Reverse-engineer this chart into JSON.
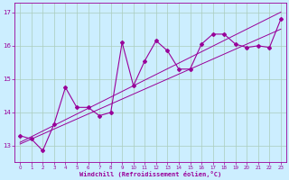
{
  "xlabel": "Windchill (Refroidissement éolien,°C)",
  "bg_color": "#cceeff",
  "line_color": "#990099",
  "grid_color": "#aaccbb",
  "x_data": [
    0,
    1,
    2,
    3,
    4,
    5,
    6,
    7,
    8,
    9,
    10,
    11,
    12,
    13,
    14,
    15,
    16,
    17,
    18,
    19,
    20,
    21,
    22,
    23
  ],
  "y_main": [
    13.3,
    13.2,
    12.85,
    13.65,
    14.75,
    14.15,
    14.15,
    13.9,
    14.0,
    16.1,
    14.8,
    15.55,
    16.15,
    15.85,
    15.3,
    15.3,
    16.05,
    16.35,
    16.35,
    16.05,
    15.95,
    16.0,
    15.95,
    16.8
  ],
  "y_reg1": [
    13.1,
    13.27,
    13.44,
    13.61,
    13.78,
    13.95,
    14.12,
    14.29,
    14.46,
    14.63,
    14.8,
    14.97,
    15.14,
    15.31,
    15.48,
    15.65,
    15.82,
    15.99,
    16.16,
    16.33,
    16.5,
    16.67,
    16.84,
    17.01
  ],
  "y_reg2": [
    13.05,
    13.2,
    13.35,
    13.5,
    13.65,
    13.8,
    13.95,
    14.1,
    14.25,
    14.4,
    14.55,
    14.7,
    14.85,
    15.0,
    15.15,
    15.3,
    15.45,
    15.6,
    15.75,
    15.9,
    16.05,
    16.2,
    16.35,
    16.5
  ],
  "yticks": [
    13,
    14,
    15,
    16,
    17
  ],
  "ylim": [
    12.5,
    17.3
  ],
  "xlim": [
    -0.5,
    23.5
  ]
}
